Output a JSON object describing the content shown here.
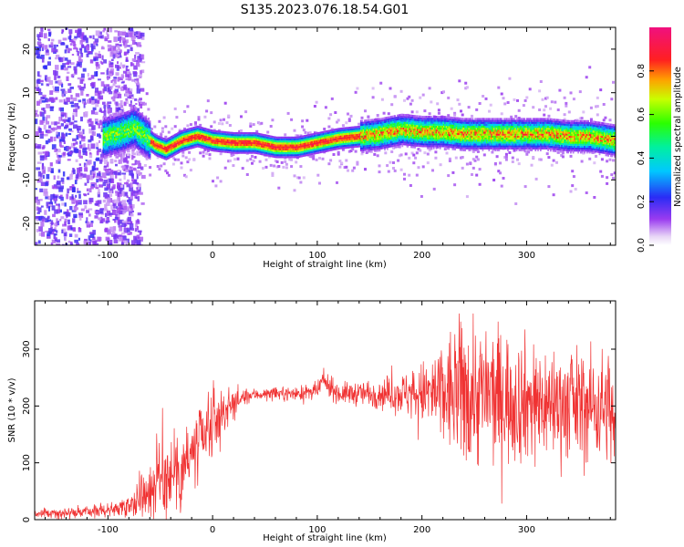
{
  "figure_title": "S135.2023.076.18.54.G01",
  "colors": {
    "snr_line": "#f03232",
    "axis": "#000000",
    "background": "#ffffff"
  },
  "chart_data": [
    {
      "type": "heatmap",
      "title": "",
      "xlabel": "Height of straight line (km)",
      "ylabel": "Frequency (Hz)",
      "xlim": [
        -170,
        385
      ],
      "ylim": [
        -25,
        25
      ],
      "x_ticks": [
        -100,
        0,
        100,
        200,
        300
      ],
      "y_ticks": [
        -20,
        -10,
        0,
        10,
        20
      ],
      "colorbar": {
        "label": "Normalized spectral amplitude",
        "range": [
          0,
          1
        ],
        "ticks": [
          0.0,
          0.2,
          0.4,
          0.6,
          0.8
        ],
        "colormap": "rainbow (white-violet-blue-cyan-green-yellow-red-magenta)"
      },
      "ridge_center_hz": {
        "x": [
          -100,
          -85,
          -75,
          -65,
          -55,
          -45,
          -30,
          -15,
          0,
          20,
          40,
          60,
          80,
          100,
          120,
          140,
          160,
          180,
          200,
          220,
          240,
          260,
          280,
          300,
          320,
          340,
          360,
          385
        ],
        "y": [
          0,
          1,
          2,
          0,
          -2,
          -3,
          -1,
          0,
          -1,
          -1.5,
          -1.5,
          -2.5,
          -2.5,
          -1.5,
          -0.5,
          0,
          0.5,
          1.5,
          1,
          1,
          0.5,
          0.5,
          0.5,
          0.5,
          0.5,
          0,
          0,
          -1
        ]
      }
    },
    {
      "type": "line",
      "title": "",
      "xlabel": "Height of straight line (km)",
      "ylabel": "SNR (10 * v/v)",
      "xlim": [
        -170,
        385
      ],
      "ylim": [
        0,
        385
      ],
      "x_ticks": [
        -100,
        0,
        100,
        200,
        300
      ],
      "y_ticks": [
        0,
        100,
        200,
        300
      ],
      "series": [
        {
          "x": [
            -170,
            -140,
            -110,
            -90,
            -80,
            -70,
            -60,
            -50,
            -40,
            -30,
            -20,
            -10,
            0,
            10,
            20,
            30,
            40,
            60,
            80,
            100,
            105,
            120,
            140,
            160,
            180,
            200,
            220,
            240,
            260,
            280,
            300,
            320,
            340,
            360,
            380,
            385
          ],
          "y": [
            10,
            12,
            15,
            20,
            28,
            40,
            55,
            75,
            85,
            95,
            110,
            135,
            165,
            190,
            205,
            215,
            220,
            222,
            222,
            225,
            245,
            222,
            222,
            222,
            222,
            222,
            220,
            225,
            220,
            215,
            210,
            205,
            205,
            200,
            200,
            135
          ],
          "spread": [
            4,
            5,
            6,
            8,
            12,
            20,
            30,
            40,
            45,
            45,
            45,
            40,
            35,
            25,
            15,
            8,
            6,
            6,
            7,
            8,
            10,
            10,
            12,
            15,
            20,
            30,
            55,
            75,
            70,
            65,
            60,
            55,
            55,
            55,
            55,
            55
          ]
        }
      ]
    }
  ]
}
